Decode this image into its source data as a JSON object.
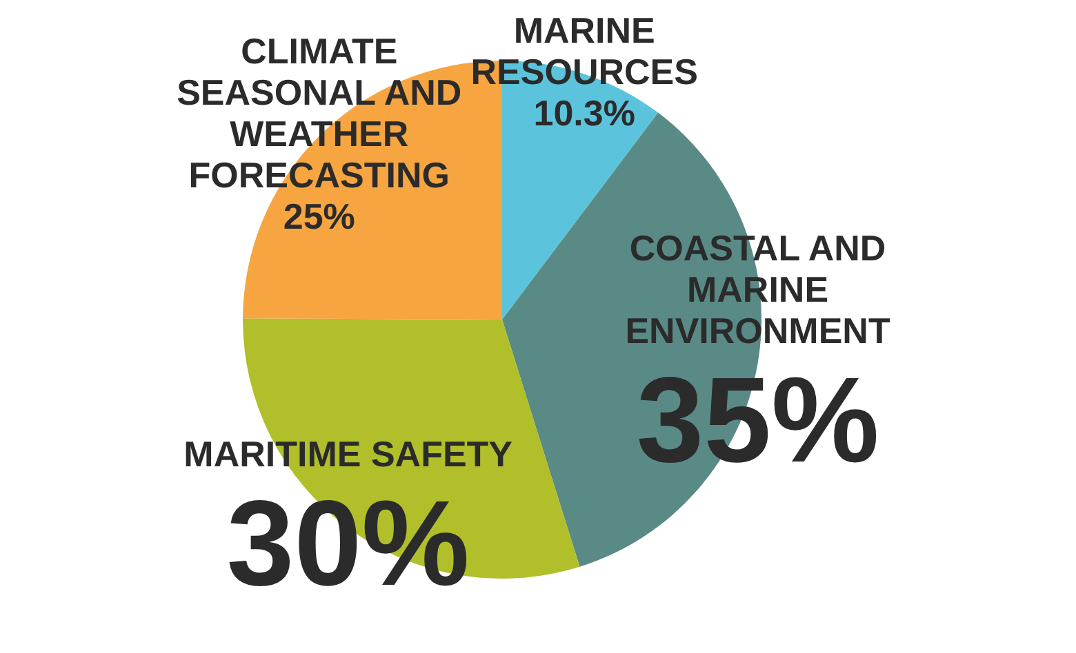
{
  "chart_data": {
    "type": "pie",
    "categories": [
      "MARINE RESOURCES",
      "COASTAL AND MARINE ENVIRONMENT",
      "MARITIME SAFETY",
      "CLIMATE SEASONAL AND WEATHER FORECASTING"
    ],
    "values": [
      10.3,
      35,
      30,
      25
    ],
    "value_labels": [
      "10.3%",
      "35%",
      "30%",
      "25%"
    ],
    "colors": [
      "#5bc4dc",
      "#5a8a85",
      "#b0bf2a",
      "#f7a540"
    ],
    "legend": false
  }
}
